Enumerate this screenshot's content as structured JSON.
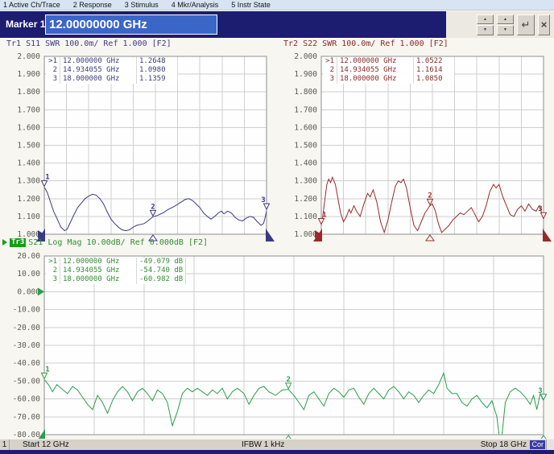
{
  "menu_items": [
    "1 Active Ch/Trace",
    "2 Response",
    "3 Stimulus",
    "4 Mkr/Analysis",
    "5 Instr State"
  ],
  "marker_entry": {
    "label": "Marker 1",
    "value": "12.00000000 GHz"
  },
  "icons": {
    "spin_up": "▲",
    "spin_down": "▼",
    "enter": "↵",
    "close": "×"
  },
  "status": {
    "channel": "1",
    "start": "Start 12 GHz",
    "ifbw": "IFBW 1 kHz",
    "stop": "Stop 18 GHz",
    "cor": "Cor"
  },
  "chart_data": [
    {
      "id": "tr1",
      "type": "line",
      "title": "Tr1 S11 SWR 100.0m/ Ref 1.000 [F2]",
      "color": "#3a3a85",
      "x_range_ghz": [
        12,
        18
      ],
      "y_range": [
        1.0,
        2.0
      ],
      "ref_value": 1.0,
      "y_ticks": [
        "2.000",
        "1.900",
        "1.800",
        "1.700",
        "1.600",
        "1.500",
        "1.400",
        "1.300",
        "1.200",
        "1.100",
        "1.000"
      ],
      "markers": [
        {
          "n": "1",
          "ghz": 12.0,
          "value": 1.2648
        },
        {
          "n": "2",
          "ghz": 14.934055,
          "value": 1.098
        },
        {
          "n": "3",
          "ghz": 18.0,
          "value": 1.1359
        }
      ],
      "marker_table": [
        [
          ">1",
          "12.000000 GHz",
          "1.2648"
        ],
        [
          " 2",
          "14.934055 GHz",
          "1.0980"
        ],
        [
          " 3",
          "18.000000 GHz",
          "1.1359"
        ]
      ],
      "series": [
        [
          12,
          1.265
        ],
        [
          12.08,
          1.235
        ],
        [
          12.16,
          1.185
        ],
        [
          12.25,
          1.13
        ],
        [
          12.35,
          1.085
        ],
        [
          12.45,
          1.04
        ],
        [
          12.55,
          1.02
        ],
        [
          12.62,
          1.03
        ],
        [
          12.7,
          1.065
        ],
        [
          12.8,
          1.11
        ],
        [
          12.9,
          1.15
        ],
        [
          13.0,
          1.175
        ],
        [
          13.1,
          1.2
        ],
        [
          13.2,
          1.215
        ],
        [
          13.3,
          1.225
        ],
        [
          13.4,
          1.22
        ],
        [
          13.5,
          1.2
        ],
        [
          13.6,
          1.17
        ],
        [
          13.7,
          1.125
        ],
        [
          13.8,
          1.085
        ],
        [
          13.9,
          1.06
        ],
        [
          14.0,
          1.04
        ],
        [
          14.1,
          1.025
        ],
        [
          14.2,
          1.02
        ],
        [
          14.3,
          1.025
        ],
        [
          14.4,
          1.04
        ],
        [
          14.5,
          1.05
        ],
        [
          14.6,
          1.055
        ],
        [
          14.7,
          1.06
        ],
        [
          14.8,
          1.075
        ],
        [
          14.934,
          1.098
        ],
        [
          15.05,
          1.105
        ],
        [
          15.2,
          1.12
        ],
        [
          15.35,
          1.14
        ],
        [
          15.5,
          1.155
        ],
        [
          15.65,
          1.175
        ],
        [
          15.8,
          1.195
        ],
        [
          15.9,
          1.2
        ],
        [
          16.0,
          1.19
        ],
        [
          16.1,
          1.17
        ],
        [
          16.2,
          1.15
        ],
        [
          16.3,
          1.12
        ],
        [
          16.4,
          1.1
        ],
        [
          16.5,
          1.085
        ],
        [
          16.6,
          1.1
        ],
        [
          16.7,
          1.12
        ],
        [
          16.78,
          1.13
        ],
        [
          16.85,
          1.115
        ],
        [
          16.95,
          1.13
        ],
        [
          17.05,
          1.12
        ],
        [
          17.15,
          1.095
        ],
        [
          17.25,
          1.08
        ],
        [
          17.35,
          1.075
        ],
        [
          17.45,
          1.09
        ],
        [
          17.55,
          1.1
        ],
        [
          17.65,
          1.095
        ],
        [
          17.75,
          1.07
        ],
        [
          17.85,
          1.05
        ],
        [
          17.92,
          1.06
        ],
        [
          17.97,
          1.1
        ],
        [
          18,
          1.136
        ]
      ]
    },
    {
      "id": "tr2",
      "type": "line",
      "title": "Tr2 S22 SWR 100.0m/ Ref 1.000 [F2]",
      "color": "#992a2a",
      "x_range_ghz": [
        12,
        18
      ],
      "y_range": [
        1.0,
        2.0
      ],
      "ref_value": 1.0,
      "y_ticks": [
        "2.000",
        "1.900",
        "1.800",
        "1.700",
        "1.600",
        "1.500",
        "1.400",
        "1.300",
        "1.200",
        "1.100",
        "1.000"
      ],
      "markers": [
        {
          "n": "1",
          "ghz": 12.0,
          "value": 1.0522
        },
        {
          "n": "2",
          "ghz": 14.934055,
          "value": 1.1614
        },
        {
          "n": "3",
          "ghz": 18.0,
          "value": 1.085
        }
      ],
      "marker_table": [
        [
          ">1",
          "12.000000 GHz",
          "1.0522"
        ],
        [
          " 2",
          "14.934055 GHz",
          "1.1614"
        ],
        [
          " 3",
          "18.000000 GHz",
          "1.0850"
        ]
      ],
      "series": [
        [
          12,
          1.05
        ],
        [
          12.04,
          1.1
        ],
        [
          12.1,
          1.2
        ],
        [
          12.15,
          1.28
        ],
        [
          12.2,
          1.31
        ],
        [
          12.25,
          1.29
        ],
        [
          12.3,
          1.32
        ],
        [
          12.38,
          1.28
        ],
        [
          12.45,
          1.2
        ],
        [
          12.52,
          1.12
        ],
        [
          12.6,
          1.07
        ],
        [
          12.68,
          1.1
        ],
        [
          12.75,
          1.14
        ],
        [
          12.8,
          1.12
        ],
        [
          12.88,
          1.16
        ],
        [
          12.95,
          1.13
        ],
        [
          13.05,
          1.1
        ],
        [
          13.15,
          1.17
        ],
        [
          13.25,
          1.23
        ],
        [
          13.32,
          1.21
        ],
        [
          13.4,
          1.25
        ],
        [
          13.5,
          1.18
        ],
        [
          13.6,
          1.07
        ],
        [
          13.7,
          1.01
        ],
        [
          13.8,
          1.08
        ],
        [
          13.9,
          1.18
        ],
        [
          14.0,
          1.27
        ],
        [
          14.08,
          1.3
        ],
        [
          14.15,
          1.29
        ],
        [
          14.22,
          1.31
        ],
        [
          14.3,
          1.26
        ],
        [
          14.4,
          1.15
        ],
        [
          14.5,
          1.05
        ],
        [
          14.6,
          1.02
        ],
        [
          14.7,
          1.07
        ],
        [
          14.8,
          1.12
        ],
        [
          14.934,
          1.161
        ],
        [
          15.0,
          1.17
        ],
        [
          15.08,
          1.13
        ],
        [
          15.16,
          1.06
        ],
        [
          15.25,
          1.01
        ],
        [
          15.35,
          1.03
        ],
        [
          15.45,
          1.05
        ],
        [
          15.55,
          1.08
        ],
        [
          15.65,
          1.1
        ],
        [
          15.75,
          1.12
        ],
        [
          15.85,
          1.11
        ],
        [
          15.95,
          1.13
        ],
        [
          16.05,
          1.15
        ],
        [
          16.15,
          1.11
        ],
        [
          16.25,
          1.07
        ],
        [
          16.35,
          1.1
        ],
        [
          16.45,
          1.16
        ],
        [
          16.55,
          1.24
        ],
        [
          16.65,
          1.28
        ],
        [
          16.72,
          1.26
        ],
        [
          16.8,
          1.28
        ],
        [
          16.9,
          1.21
        ],
        [
          17.0,
          1.16
        ],
        [
          17.1,
          1.11
        ],
        [
          17.2,
          1.1
        ],
        [
          17.3,
          1.14
        ],
        [
          17.4,
          1.16
        ],
        [
          17.5,
          1.13
        ],
        [
          17.6,
          1.17
        ],
        [
          17.7,
          1.14
        ],
        [
          17.8,
          1.13
        ],
        [
          17.88,
          1.16
        ],
        [
          17.95,
          1.12
        ],
        [
          18,
          1.085
        ]
      ]
    },
    {
      "id": "tr3",
      "type": "line",
      "badge": "Tr3",
      "title": "S21 Log Mag 10.00dB/ Ref 0.000dB [F2]",
      "color": "#2a9e4a",
      "x_range_ghz": [
        12,
        18
      ],
      "y_range": [
        -80,
        20
      ],
      "ref_value": 0.0,
      "y_ticks": [
        "20.00",
        "10.00",
        "0.000",
        "-10.00",
        "-20.00",
        "-30.00",
        "-40.00",
        "-50.00",
        "-60.00",
        "-70.00",
        "-80.00"
      ],
      "markers": [
        {
          "n": "1",
          "ghz": 12.0,
          "value": -49.079
        },
        {
          "n": "2",
          "ghz": 14.934055,
          "value": -54.74
        },
        {
          "n": "3",
          "ghz": 18.0,
          "value": -60.982
        }
      ],
      "marker_table": [
        [
          ">1",
          "12.000000 GHz",
          "-49.079 dB"
        ],
        [
          " 2",
          "14.934055 GHz",
          "-54.740 dB"
        ],
        [
          " 3",
          "18.000000 GHz",
          "-60.982 dB"
        ]
      ],
      "series": [
        [
          12,
          -49.1
        ],
        [
          12.05,
          -52
        ],
        [
          12.1,
          -56
        ],
        [
          12.15,
          -52
        ],
        [
          12.2,
          -54
        ],
        [
          12.28,
          -57
        ],
        [
          12.34,
          -53
        ],
        [
          12.4,
          -55
        ],
        [
          12.46,
          -59
        ],
        [
          12.52,
          -63
        ],
        [
          12.58,
          -66
        ],
        [
          12.64,
          -58
        ],
        [
          12.7,
          -62
        ],
        [
          12.76,
          -68
        ],
        [
          12.82,
          -61
        ],
        [
          12.88,
          -56
        ],
        [
          12.94,
          -53
        ],
        [
          13.0,
          -56
        ],
        [
          13.06,
          -61
        ],
        [
          13.12,
          -56
        ],
        [
          13.18,
          -54
        ],
        [
          13.24,
          -57
        ],
        [
          13.3,
          -61
        ],
        [
          13.36,
          -55
        ],
        [
          13.42,
          -57
        ],
        [
          13.48,
          -62
        ],
        [
          13.54,
          -75
        ],
        [
          13.6,
          -67
        ],
        [
          13.66,
          -57
        ],
        [
          13.72,
          -54
        ],
        [
          13.78,
          -56
        ],
        [
          13.84,
          -54
        ],
        [
          13.9,
          -56
        ],
        [
          13.96,
          -58
        ],
        [
          14.02,
          -55
        ],
        [
          14.08,
          -57
        ],
        [
          14.14,
          -54
        ],
        [
          14.2,
          -60
        ],
        [
          14.26,
          -56
        ],
        [
          14.32,
          -54
        ],
        [
          14.4,
          -57
        ],
        [
          14.46,
          -63
        ],
        [
          14.52,
          -58
        ],
        [
          14.58,
          -54
        ],
        [
          14.64,
          -53
        ],
        [
          14.7,
          -56
        ],
        [
          14.78,
          -58
        ],
        [
          14.86,
          -55
        ],
        [
          14.934,
          -54.7
        ],
        [
          15.0,
          -58
        ],
        [
          15.06,
          -62
        ],
        [
          15.12,
          -66
        ],
        [
          15.18,
          -58
        ],
        [
          15.24,
          -56
        ],
        [
          15.3,
          -60
        ],
        [
          15.36,
          -64
        ],
        [
          15.42,
          -57
        ],
        [
          15.48,
          -54
        ],
        [
          15.54,
          -56
        ],
        [
          15.6,
          -59
        ],
        [
          15.66,
          -55
        ],
        [
          15.72,
          -54
        ],
        [
          15.78,
          -59
        ],
        [
          15.84,
          -63
        ],
        [
          15.9,
          -57
        ],
        [
          15.96,
          -54
        ],
        [
          16.02,
          -57
        ],
        [
          16.08,
          -60
        ],
        [
          16.14,
          -55
        ],
        [
          16.2,
          -53
        ],
        [
          16.26,
          -56
        ],
        [
          16.32,
          -60
        ],
        [
          16.38,
          -56
        ],
        [
          16.44,
          -58
        ],
        [
          16.5,
          -62
        ],
        [
          16.56,
          -58
        ],
        [
          16.62,
          -55
        ],
        [
          16.68,
          -57
        ],
        [
          16.74,
          -52
        ],
        [
          16.8,
          -45.5
        ],
        [
          16.84,
          -54
        ],
        [
          16.9,
          -57
        ],
        [
          16.96,
          -57
        ],
        [
          17.02,
          -62
        ],
        [
          17.08,
          -64
        ],
        [
          17.14,
          -60
        ],
        [
          17.2,
          -58
        ],
        [
          17.26,
          -62
        ],
        [
          17.32,
          -65
        ],
        [
          17.38,
          -61
        ],
        [
          17.44,
          -70
        ],
        [
          17.47,
          -82
        ],
        [
          17.5,
          -81
        ],
        [
          17.54,
          -62
        ],
        [
          17.6,
          -56
        ],
        [
          17.66,
          -54
        ],
        [
          17.72,
          -56
        ],
        [
          17.78,
          -59
        ],
        [
          17.84,
          -63
        ],
        [
          17.88,
          -58
        ],
        [
          17.92,
          -66
        ],
        [
          17.96,
          -57
        ],
        [
          18,
          -61
        ]
      ]
    }
  ]
}
